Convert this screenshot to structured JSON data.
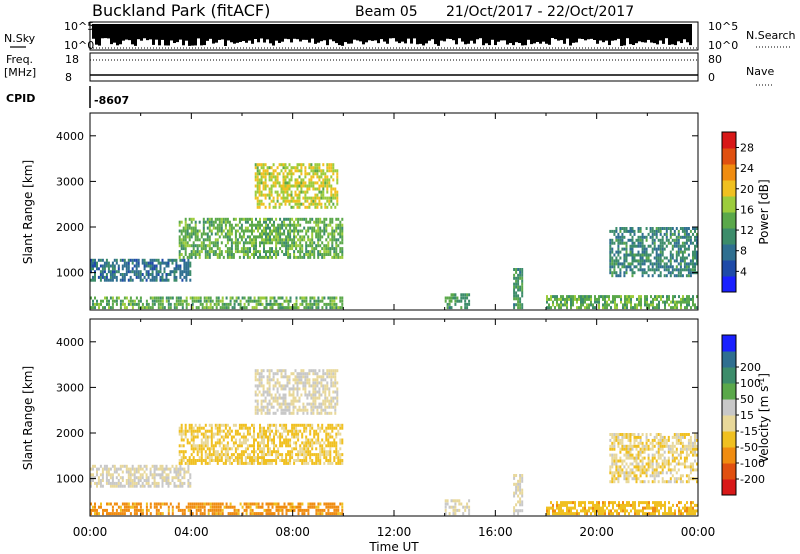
{
  "header": {
    "title": "Buckland Park (fitACF)",
    "beam": "Beam 05",
    "dates": "21/Oct/2017 - 22/Oct/2017"
  },
  "strips": {
    "nsky_label": "N.Sky",
    "nsearch_label": "N.Search",
    "freq_label_1": "Freq.",
    "freq_label_2": "[MHz]",
    "nave_label": "Nave",
    "cpid_label": "CPID",
    "cpid_value": "-8607",
    "noise_ticks_left": [
      "10^5",
      "10^0"
    ],
    "noise_ticks_right": [
      "10^5",
      "10^0"
    ],
    "freq_ticks": [
      "18",
      "8"
    ],
    "nave_ticks": [
      "80",
      "0"
    ]
  },
  "colors": {
    "power_scale": [
      "#1a20ff",
      "#1e4aa8",
      "#2f6f90",
      "#3c8c6a",
      "#5aa84a",
      "#9ccc3c",
      "#f0c020",
      "#f08c10",
      "#e05010",
      "#d81818"
    ],
    "velocity_scale": [
      "#d81818",
      "#e05010",
      "#f08c10",
      "#f0c020",
      "#e8d89a",
      "#c8c8c8",
      "#5aa84a",
      "#3c8c6a",
      "#2f6f90",
      "#1a20ff"
    ]
  },
  "chart_data": [
    {
      "type": "heatmap",
      "panel": "power",
      "ylabel": "Slant Range [km]",
      "yticks": [
        "1000",
        "2000",
        "3000",
        "4000"
      ],
      "ylim": [
        180,
        4500
      ],
      "xlim": [
        0,
        24
      ],
      "colorbar_label": "Power [dB]",
      "colorbar_ticks": [
        "4",
        "8",
        "12",
        "16",
        "20",
        "24",
        "28"
      ],
      "colorbar_range": [
        0,
        31
      ],
      "features": [
        {
          "name": "near-range-band",
          "t": [
            0,
            10
          ],
          "r": [
            200,
            480
          ],
          "value": 14
        },
        {
          "name": "early-band",
          "t": [
            0,
            4
          ],
          "r": [
            800,
            1300
          ],
          "value": 8
        },
        {
          "name": "rising-band",
          "t": [
            3.5,
            10
          ],
          "r": [
            1300,
            2200
          ],
          "value": 14
        },
        {
          "name": "upper-patch",
          "t": [
            6.5,
            9.8
          ],
          "r": [
            2400,
            3400
          ],
          "value": 18
        },
        {
          "name": "late-patch-1",
          "t": [
            14,
            15
          ],
          "r": [
            200,
            550
          ],
          "value": 12
        },
        {
          "name": "late-patch-2",
          "t": [
            16.7,
            17.1
          ],
          "r": [
            200,
            1100
          ],
          "value": 12
        },
        {
          "name": "late-band",
          "t": [
            18,
            24
          ],
          "r": [
            200,
            500
          ],
          "value": 14
        },
        {
          "name": "evening-band",
          "t": [
            20.5,
            24
          ],
          "r": [
            900,
            2000
          ],
          "value": 10
        }
      ]
    },
    {
      "type": "heatmap",
      "panel": "velocity",
      "xlabel": "Time UT",
      "ylabel": "Slant Range [km]",
      "xticks": [
        "00:00",
        "04:00",
        "08:00",
        "12:00",
        "16:00",
        "20:00",
        "00:00"
      ],
      "yticks": [
        "1000",
        "2000",
        "3000",
        "4000"
      ],
      "ylim": [
        180,
        4500
      ],
      "xlim": [
        0,
        24
      ],
      "colorbar_label": "Velocity [m s^-1]",
      "colorbar_ticks": [
        "-200",
        "-100",
        "-50",
        "-15",
        "15",
        "50",
        "100",
        "200"
      ],
      "features": [
        {
          "name": "near-range-band",
          "t": [
            0,
            10
          ],
          "r": [
            200,
            480
          ],
          "value": -60
        },
        {
          "name": "early-band",
          "t": [
            0,
            4
          ],
          "r": [
            800,
            1300
          ],
          "value": 0
        },
        {
          "name": "rising-band",
          "t": [
            3.5,
            10
          ],
          "r": [
            1300,
            2200
          ],
          "value": -20
        },
        {
          "name": "upper-patch",
          "t": [
            6.5,
            9.8
          ],
          "r": [
            2400,
            3400
          ],
          "value": 0
        },
        {
          "name": "late-patch-1",
          "t": [
            14,
            15
          ],
          "r": [
            200,
            550
          ],
          "value": 0
        },
        {
          "name": "late-patch-2",
          "t": [
            16.7,
            17.1
          ],
          "r": [
            200,
            1100
          ],
          "value": 0
        },
        {
          "name": "late-band",
          "t": [
            18,
            24
          ],
          "r": [
            200,
            500
          ],
          "value": -40
        },
        {
          "name": "evening-band",
          "t": [
            20.5,
            24
          ],
          "r": [
            900,
            2000
          ],
          "value": -10
        }
      ]
    }
  ]
}
